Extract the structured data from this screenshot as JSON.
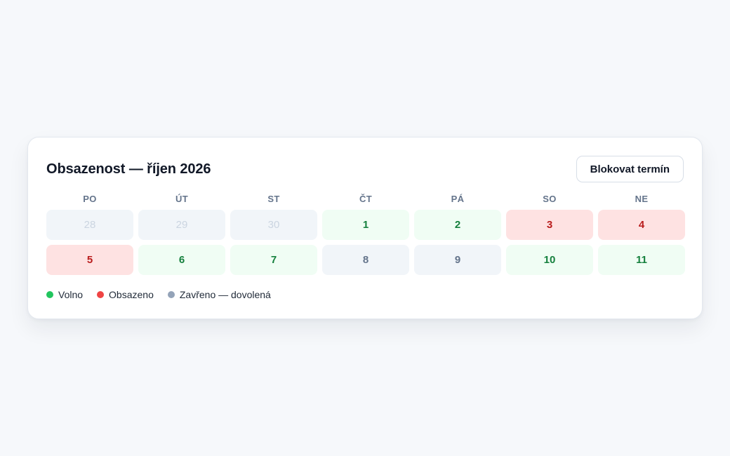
{
  "title": "Obsazenost — říjen 2026",
  "actions": {
    "block_label": "Blokovat termín"
  },
  "weekdays": [
    "PO",
    "ÚT",
    "ST",
    "ČT",
    "PÁ",
    "SO",
    "NE"
  ],
  "days": [
    {
      "label": "28",
      "status": "outside"
    },
    {
      "label": "29",
      "status": "outside"
    },
    {
      "label": "30",
      "status": "outside"
    },
    {
      "label": "1",
      "status": "free"
    },
    {
      "label": "2",
      "status": "free"
    },
    {
      "label": "3",
      "status": "busy"
    },
    {
      "label": "4",
      "status": "busy"
    },
    {
      "label": "5",
      "status": "busy"
    },
    {
      "label": "6",
      "status": "free"
    },
    {
      "label": "7",
      "status": "free"
    },
    {
      "label": "8",
      "status": "closed"
    },
    {
      "label": "9",
      "status": "closed"
    },
    {
      "label": "10",
      "status": "free"
    },
    {
      "label": "11",
      "status": "free"
    }
  ],
  "legend": [
    {
      "key": "free",
      "label": "Volno",
      "color": "#22c55e"
    },
    {
      "key": "busy",
      "label": "Obsazeno",
      "color": "#ef4444"
    },
    {
      "key": "closed",
      "label": "Zavřeno — dovolená",
      "color": "#94a3b8"
    }
  ]
}
